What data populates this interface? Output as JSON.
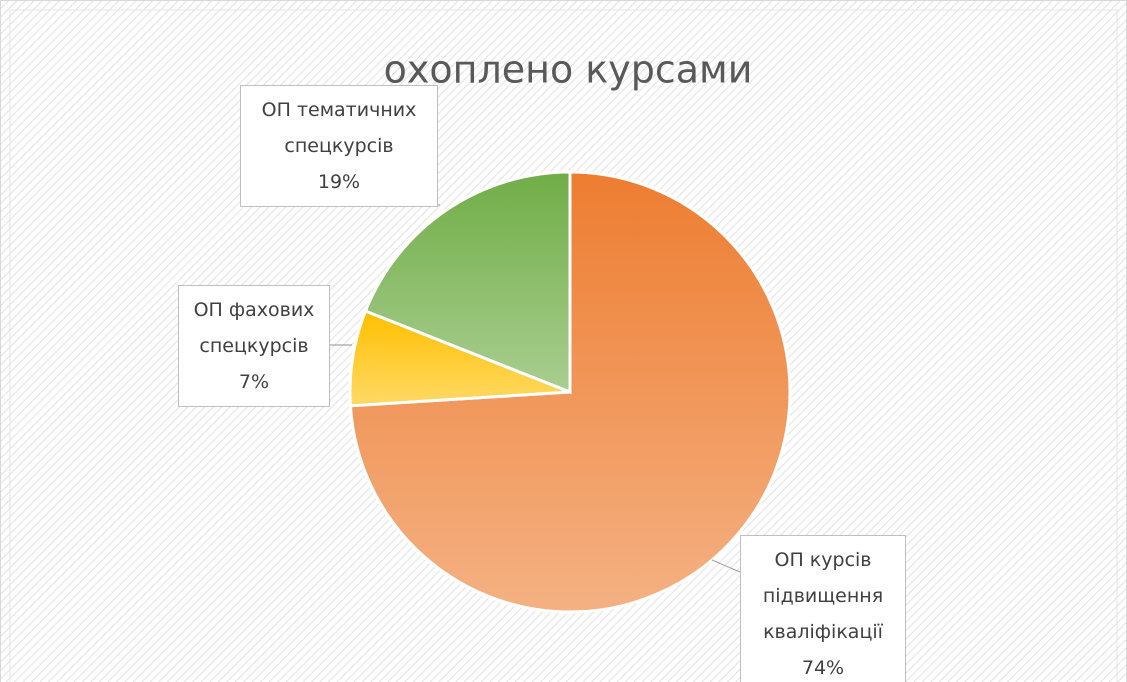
{
  "chart_data": {
    "type": "pie",
    "title": "охоплено курсами",
    "categories": [
      "ОП курсів підвищення кваліфікації",
      "ОП фахових спецкурсів",
      "ОП тематичних спецкурсів"
    ],
    "values": [
      74,
      7,
      19
    ],
    "value_labels": [
      "74%",
      "7%",
      "19%"
    ],
    "colors": [
      "#ed7d31",
      "#ffc000",
      "#70ad47"
    ]
  }
}
